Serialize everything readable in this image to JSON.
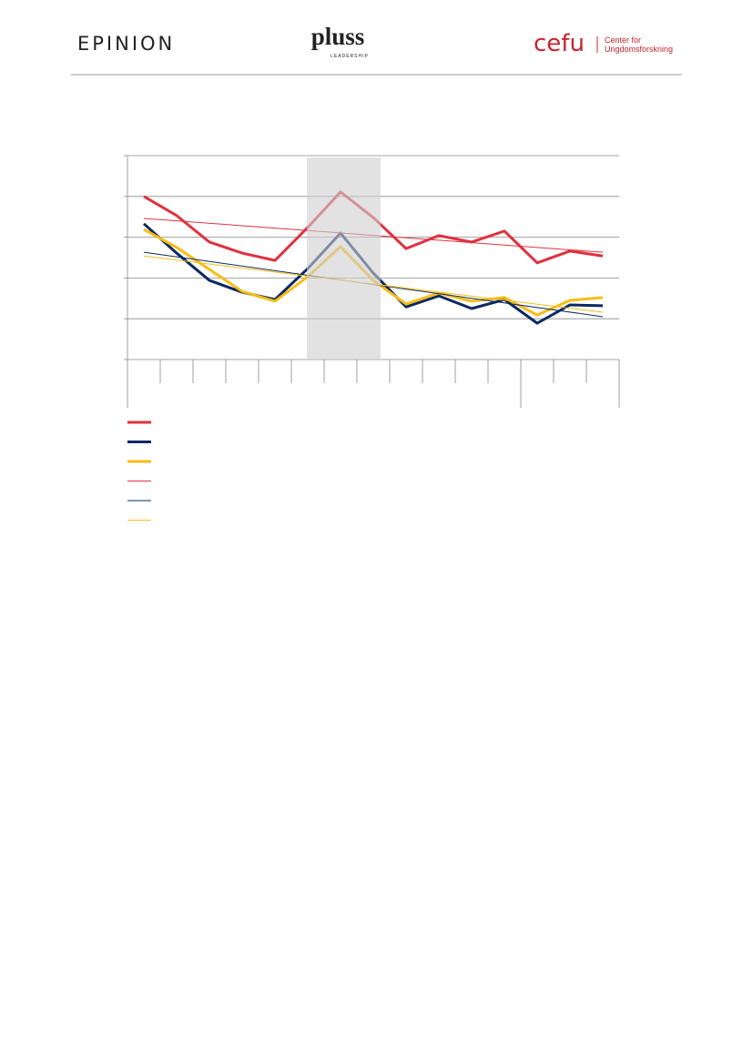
{
  "header": {
    "left_logo": "EPINION",
    "center_logo": "pluss",
    "center_sub": "LEADERSHIP",
    "right_logo": "cefu",
    "right_text_1": "Center for",
    "right_text_2": "Ungdomsforskning"
  },
  "chart_data": {
    "type": "line",
    "categories": [
      null,
      null,
      null,
      null,
      null,
      null,
      null,
      null,
      null,
      null,
      null,
      null,
      null,
      null,
      null
    ],
    "ylim": [
      0,
      5
    ],
    "yticks": [
      0,
      1,
      2,
      3,
      4,
      5
    ],
    "grid": true,
    "series": [
      {
        "color": "#e0313f",
        "values": [
          4.0,
          3.53,
          2.88,
          2.61,
          2.43,
          3.24,
          4.11,
          3.48,
          2.72,
          3.04,
          2.88,
          3.15,
          2.37,
          2.66,
          2.54
        ]
      },
      {
        "color": "#0c2a63",
        "values": [
          3.33,
          2.61,
          1.94,
          1.65,
          1.47,
          2.23,
          3.1,
          2.12,
          1.29,
          1.56,
          1.25,
          1.47,
          0.89,
          1.34,
          1.32
        ]
      },
      {
        "color": "#f7bd14",
        "values": [
          3.19,
          2.75,
          2.21,
          1.67,
          1.43,
          2.03,
          2.77,
          1.94,
          1.36,
          1.63,
          1.43,
          1.52,
          1.09,
          1.45,
          1.52
        ]
      }
    ],
    "trendlines": [
      {
        "color": "#e0313f",
        "start": 3.46,
        "end": 2.63
      },
      {
        "color": "#0c2a63",
        "start": 2.63,
        "end": 1.05
      },
      {
        "color": "#f7bd14",
        "start": 2.54,
        "end": 1.16
      }
    ]
  }
}
